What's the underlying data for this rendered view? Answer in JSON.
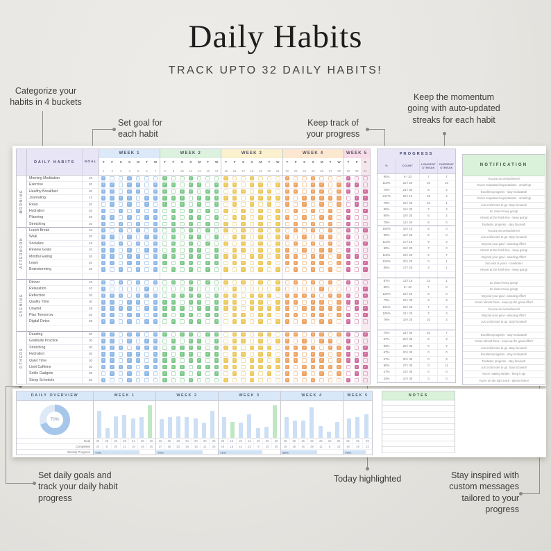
{
  "page": {
    "title": "Daily Habits",
    "subtitle": "TRACK UPTO 32 DAILY HABITS!"
  },
  "callouts": {
    "categorize": "Categorize your\nhabits in 4 buckets",
    "set_goal": "Set goal for\neach habit",
    "keep_track": "Keep track of\nyour progress",
    "momentum": "Keep the momentum\ngoing with auto-updated\nstreaks for each habit",
    "daily_goals": "Set daily goals and\ntrack your daily habit\nprogress",
    "today": "Today highlighted",
    "inspired": "Stay inspired with\ncustom messages\ntailored to your\nprogress"
  },
  "colors": {
    "lavender": "#e8e5f7",
    "mint": "#d9f2d9",
    "header_blue": "#d9e8f8",
    "donut_fill": "#a6c6ea",
    "donut_track": "#dde9f7",
    "bar_blue": "#ccdff4",
    "bar_green": "#bfe8c2",
    "today_tint": "#cf6d9c"
  },
  "tracker": {
    "habits_header": "DAILY HABITS",
    "goal_header": "GOAL",
    "notification_header": "NOTIFICATION",
    "today_date": "31",
    "progress": {
      "title": "PROGRESS",
      "columns": [
        "%",
        "COUNT",
        "LONGEST\nSTREAK",
        "CURRENT\nSTREAK"
      ]
    },
    "weeks": [
      {
        "label": "WEEK 1",
        "days": [
          "T",
          "F",
          "S",
          "S",
          "M",
          "T",
          "W"
        ],
        "dates": [
          "1",
          "2",
          "3",
          "4",
          "5",
          "6",
          "7"
        ],
        "light": "#dbe9f8",
        "accent": "#8fb9e6",
        "box": "#b9d2ee"
      },
      {
        "label": "WEEK 2",
        "days": [
          "T",
          "F",
          "S",
          "S",
          "M",
          "T",
          "W"
        ],
        "dates": [
          "8",
          "9",
          "10",
          "11",
          "12",
          "13",
          "14"
        ],
        "light": "#dcf2de",
        "accent": "#7fc98b",
        "box": "#b2dfba"
      },
      {
        "label": "WEEK 3",
        "days": [
          "T",
          "F",
          "S",
          "S",
          "M",
          "T",
          "W"
        ],
        "dates": [
          "15",
          "16",
          "17",
          "18",
          "19",
          "20",
          "21"
        ],
        "light": "#fbf1cf",
        "accent": "#ecc95e",
        "box": "#f2dfa2"
      },
      {
        "label": "WEEK 4",
        "days": [
          "T",
          "F",
          "S",
          "S",
          "M",
          "T",
          "W"
        ],
        "dates": [
          "22",
          "23",
          "24",
          "25",
          "26",
          "27",
          "28"
        ],
        "light": "#fce7d1",
        "accent": "#eda465",
        "box": "#f5cda6"
      },
      {
        "label": "WEEK 5",
        "days": [
          "T",
          "F",
          "S"
        ],
        "dates": [
          "29",
          "30",
          "31"
        ],
        "light": "#f7dbe6",
        "accent": "#cf6d9c",
        "box": "#e6afc8"
      }
    ],
    "groups": [
      {
        "name": "MORNING",
        "rows": [
          {
            "habit": "Morning Meditation",
            "goal": "10",
            "checks": "1001000100100010010001001000100",
            "pct": "90%",
            "count": "9 / 10",
            "longest": "7",
            "current": "7",
            "note": "You are an overachiever!"
          },
          {
            "habit": "Exercise",
            "goal": "20",
            "checks": "1101101110110111011011101101110",
            "pct": "110%",
            "count": "22 / 20",
            "longest": "10",
            "current": "10",
            "note": "You've surpassed expectations - amazing!"
          },
          {
            "habit": "Healthy Breakfast",
            "goal": "30",
            "checks": "1101101101101101101101101101101",
            "pct": "70%",
            "count": "21 / 30",
            "longest": "6",
            "current": "2",
            "note": "Excellent progress - stay motivated!"
          },
          {
            "habit": "Journaling",
            "goal": "12",
            "checks": "1111011111011111011111011111011",
            "pct": "217%",
            "count": "26 / 12",
            "longest": "18",
            "current": "4",
            "note": "You've surpassed expectations - amazing!"
          },
          {
            "habit": "Read",
            "goal": "20",
            "checks": "0101010101010101010101010101010",
            "pct": "75%",
            "count": "15 / 20",
            "longest": "10",
            "current": "1",
            "note": "Just a bit more to go. Stay focused!"
          },
          {
            "habit": "Hydration",
            "goal": "20",
            "checks": "1010101010101010101010101010101",
            "pct": "80%",
            "count": "16 / 20",
            "longest": "7",
            "current": "2",
            "note": "So close! Keep going!"
          },
          {
            "habit": "Planning",
            "goal": "20",
            "checks": "1101011010110101101011010110100",
            "pct": "90%",
            "count": "18 / 20",
            "longest": "6",
            "current": "2",
            "note": "Almost at the finish line - keep going!"
          },
          {
            "habit": "Stretching",
            "goal": "20",
            "checks": "1010101010101010101010101010100",
            "pct": "70%",
            "count": "14 / 20",
            "longest": "9",
            "current": "0",
            "note": "Fantastic progress - stay focused!"
          }
        ]
      },
      {
        "name": "AFTERNOON",
        "rows": [
          {
            "habit": "Lunch Break",
            "goal": "10",
            "checks": "1010101010101010101010101010101",
            "pct": "160%",
            "count": "16 / 10",
            "longest": "5",
            "current": "0",
            "note": "You are an overachiever!"
          },
          {
            "habit": "Walk",
            "goal": "20",
            "checks": "1101011010110101101011010110100",
            "pct": "90%",
            "count": "18 / 20",
            "longest": "8",
            "current": "0",
            "note": "Just a bit more to go. Stay focused!"
          },
          {
            "habit": "Socialize",
            "goal": "15",
            "checks": "1010101010101010101010101010101",
            "pct": "113%",
            "count": "17 / 15",
            "longest": "9",
            "current": "3",
            "note": "Beyond your goal - amazing effort!"
          },
          {
            "habit": "Review Goals",
            "goal": "20",
            "checks": "1101011010110101101011010110100",
            "pct": "90%",
            "count": "18 / 20",
            "longest": "7",
            "current": "0",
            "note": "Almost at the finish line - keep going!"
          },
          {
            "habit": "Mindful Eating",
            "goal": "20",
            "checks": "1101101110110111011011101101110",
            "pct": "115%",
            "count": "23 / 20",
            "longest": "6",
            "current": "7",
            "note": "Beyond your goal - amazing effort!"
          },
          {
            "habit": "Learn",
            "goal": "20",
            "checks": "1101101101101101101101101101101",
            "pct": "100%",
            "count": "20 / 20",
            "longest": "0",
            "current": "1",
            "note": "Success is yours - celebrate!"
          },
          {
            "habit": "Brainstorming",
            "goal": "20",
            "checks": "1010101010101010101010101010101",
            "pct": "85%",
            "count": "17 / 20",
            "longest": "3",
            "current": "1",
            "note": "Almost at the finish line - keep going!"
          },
          {
            "habit": "",
            "goal": "",
            "checks": null,
            "pct": "",
            "count": "",
            "longest": "",
            "current": "",
            "note": ""
          }
        ]
      },
      {
        "name": "EVENING",
        "rows": [
          {
            "habit": "Dinner",
            "goal": "15",
            "checks": "1010101010101010101010101010100",
            "pct": "87%",
            "count": "13 / 15",
            "longest": "13",
            "current": "1",
            "note": "So close! Keep going!"
          },
          {
            "habit": "Relaxation",
            "goal": "10",
            "checks": "1000010000100001000010000100001",
            "pct": "80%",
            "count": "8 / 10",
            "longest": "7",
            "current": "0",
            "note": "So close! Keep going!"
          },
          {
            "habit": "Reflection",
            "goal": "20",
            "checks": "1110111011110111011101111011101",
            "pct": "120%",
            "count": "24 / 20",
            "longest": "8",
            "current": "0",
            "note": "Beyond your goal - amazing effort!"
          },
          {
            "habit": "Quality Time",
            "goal": "30",
            "checks": "1101101110110111011011101101110",
            "pct": "73%",
            "count": "22 / 30",
            "longest": "3",
            "current": "3",
            "note": "You're almost there - keep up the great effort!"
          },
          {
            "habit": "Unwind",
            "goal": "25",
            "checks": "1111011111011111011111011111011",
            "pct": "104%",
            "count": "26 / 25",
            "longest": "7",
            "current": "3",
            "note": "You are an overachiever!"
          },
          {
            "habit": "Plan Tomorrow",
            "goal": "20",
            "checks": "1101101101101101101101101101101",
            "pct": "105%",
            "count": "21 / 20",
            "longest": "7",
            "current": "3",
            "note": "Beyond your goal - amazing effort!"
          },
          {
            "habit": "Digital Detox",
            "goal": "25",
            "checks": "1101011010110101101011010110100",
            "pct": "76%",
            "count": "19 / 25",
            "longest": "10",
            "current": "3",
            "note": "Just a bit more to go. Stay focused!"
          },
          {
            "habit": "",
            "goal": "",
            "checks": null,
            "pct": "",
            "count": "",
            "longest": "",
            "current": "",
            "note": ""
          }
        ]
      },
      {
        "name": "OTHERS",
        "rows": [
          {
            "habit": "Reading",
            "goal": "30",
            "checks": "1101101101101101101101101101101",
            "pct": "70%",
            "count": "21 / 30",
            "longest": "10",
            "current": "7",
            "note": "Excellent progress - stay motivated!"
          },
          {
            "habit": "Gratitude Practice",
            "goal": "30",
            "checks": "1101011010110101101011010110100",
            "pct": "67%",
            "count": "20 / 30",
            "longest": "8",
            "current": "3",
            "note": "You're almost there - keep up the great effort!"
          },
          {
            "habit": "Stretching",
            "goal": "30",
            "checks": "1110111011110111011101111011101",
            "pct": "83%",
            "count": "25 / 30",
            "longest": "0",
            "current": "4",
            "note": "Just a bit more to go. Stay focused!"
          },
          {
            "habit": "Hydration",
            "goal": "30",
            "checks": "1101101101101101101101101101101",
            "pct": "67%",
            "count": "20 / 30",
            "longest": "0",
            "current": "0",
            "note": "Excellent progress - stay motivated!"
          },
          {
            "habit": "Quiet Time",
            "goal": "30",
            "checks": "1101101110110111011011101101110",
            "pct": "67%",
            "count": "20 / 30",
            "longest": "0",
            "current": "3",
            "note": "Fantastic progress - stay focused!"
          },
          {
            "habit": "Limit Caffeine",
            "goal": "30",
            "checks": "1111011111011111011111011111011",
            "pct": "90%",
            "count": "27 / 30",
            "longest": "0",
            "current": "11",
            "note": "Just a bit more to go. Stay focused!"
          },
          {
            "habit": "Settle Gadgets",
            "goal": "30",
            "checks": "0101010101010101010101010101010",
            "pct": "47%",
            "count": "14 / 30",
            "longest": "0",
            "current": "0",
            "note": "You're making strides - keep it up!"
          },
          {
            "habit": "Sleep Schedule",
            "goal": "30",
            "checks": "1001000100100010010001001000100",
            "pct": "33%",
            "count": "10 / 30",
            "longest": "0",
            "current": "0",
            "note": "You're on the right track - almost there!"
          }
        ]
      }
    ]
  },
  "overview": {
    "title": "DAILY OVERVIEW",
    "donut_pct": 70,
    "donut_label": "70%",
    "row_labels": [
      "Goal",
      "Completed",
      "Weekly Progress"
    ],
    "weeks": [
      {
        "label": "WEEK 1",
        "goal": [
          30,
          25,
          28,
          28,
          24,
          28,
          30
        ],
        "completed": [
          25,
          9,
          20,
          21,
          18,
          19,
          30
        ],
        "progress": "74%"
      },
      {
        "label": "WEEK 2",
        "goal": [
          22,
          25,
          28,
          24,
          20,
          30,
          30
        ],
        "completed": [
          17,
          19,
          20,
          19,
          18,
          14,
          25
        ],
        "progress": "75%"
      },
      {
        "label": "WEEK 3",
        "goal": [
          25,
          15,
          22,
          24,
          30,
          25,
          30
        ],
        "completed": [
          19,
          15,
          14,
          22,
          9,
          10,
          30
        ],
        "progress": "71%"
      },
      {
        "label": "WEEK 4",
        "goal": [
          30,
          25,
          26,
          32,
          25,
          25,
          25
        ],
        "completed": [
          19,
          16,
          16,
          28,
          11,
          6,
          15
        ],
        "progress": "58%"
      },
      {
        "label": "WEEK 5",
        "goal": [
          25,
          25,
          25
        ],
        "completed": [
          18,
          19,
          22
        ],
        "progress": "79%"
      }
    ]
  },
  "notes": {
    "title": "NOTES",
    "lines": 9
  }
}
